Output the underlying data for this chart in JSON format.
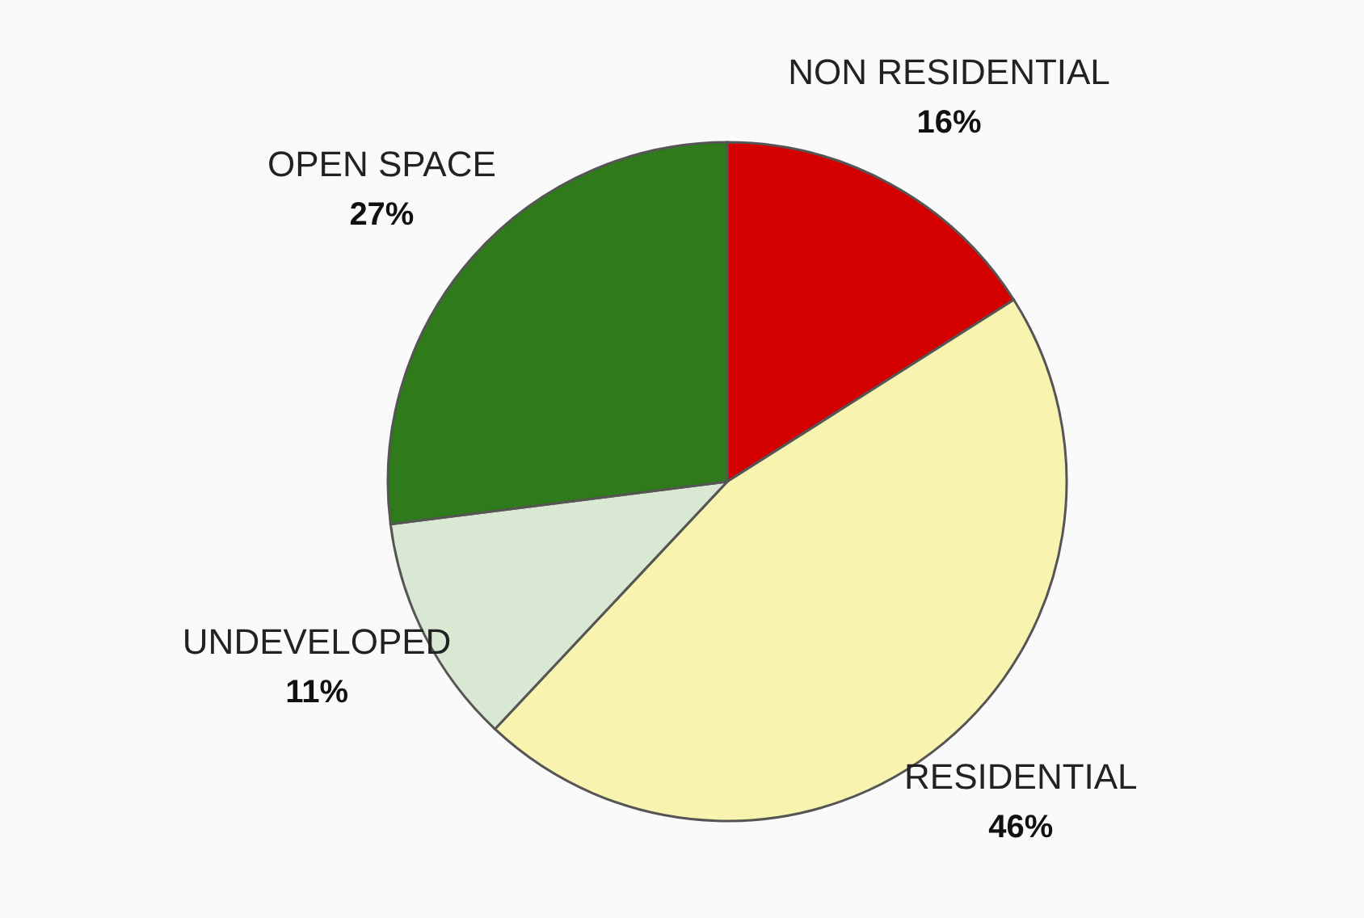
{
  "chart_data": {
    "type": "pie",
    "categories": [
      "NON RESIDENTIAL",
      "RESIDENTIAL",
      "UNDEVELOPED",
      "OPEN SPACE"
    ],
    "values": [
      16,
      46,
      11,
      27
    ],
    "value_labels": [
      "16%",
      "46%",
      "11%",
      "27%"
    ],
    "colors": [
      "#d40000",
      "#f8f4b0",
      "#d9e8d2",
      "#2f7a1a"
    ]
  }
}
